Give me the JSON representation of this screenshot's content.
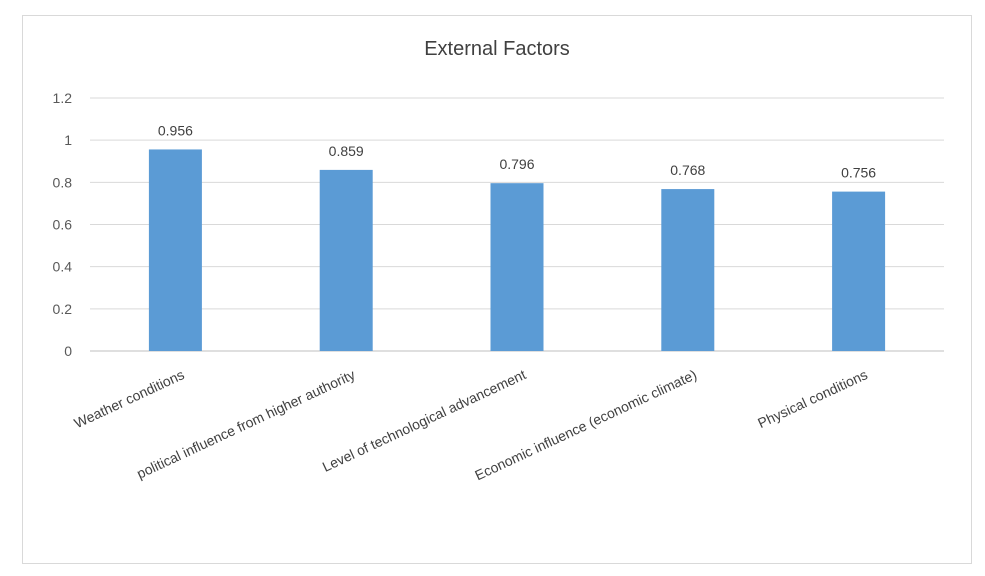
{
  "chart_data": {
    "type": "bar",
    "title": "External Factors",
    "categories": [
      "Weather conditions",
      "political influence from higher authority",
      "Level of technological  advancement",
      "Economic influence  (economic climate)",
      "Physical conditions"
    ],
    "values": [
      0.956,
      0.859,
      0.796,
      0.768,
      0.756
    ],
    "data_labels": [
      "0.956",
      "0.859",
      "0.796",
      "0.768",
      "0.756"
    ],
    "y_ticks": [
      "0",
      "0.2",
      "0.4",
      "0.6",
      "0.8",
      "1",
      "1.2"
    ],
    "ylim": [
      0,
      1.2
    ],
    "grid": true,
    "legend": "none",
    "colors": {
      "bar": "#5B9BD5",
      "grid": "#d9d9d9",
      "axis": "#bfbfbf"
    }
  }
}
